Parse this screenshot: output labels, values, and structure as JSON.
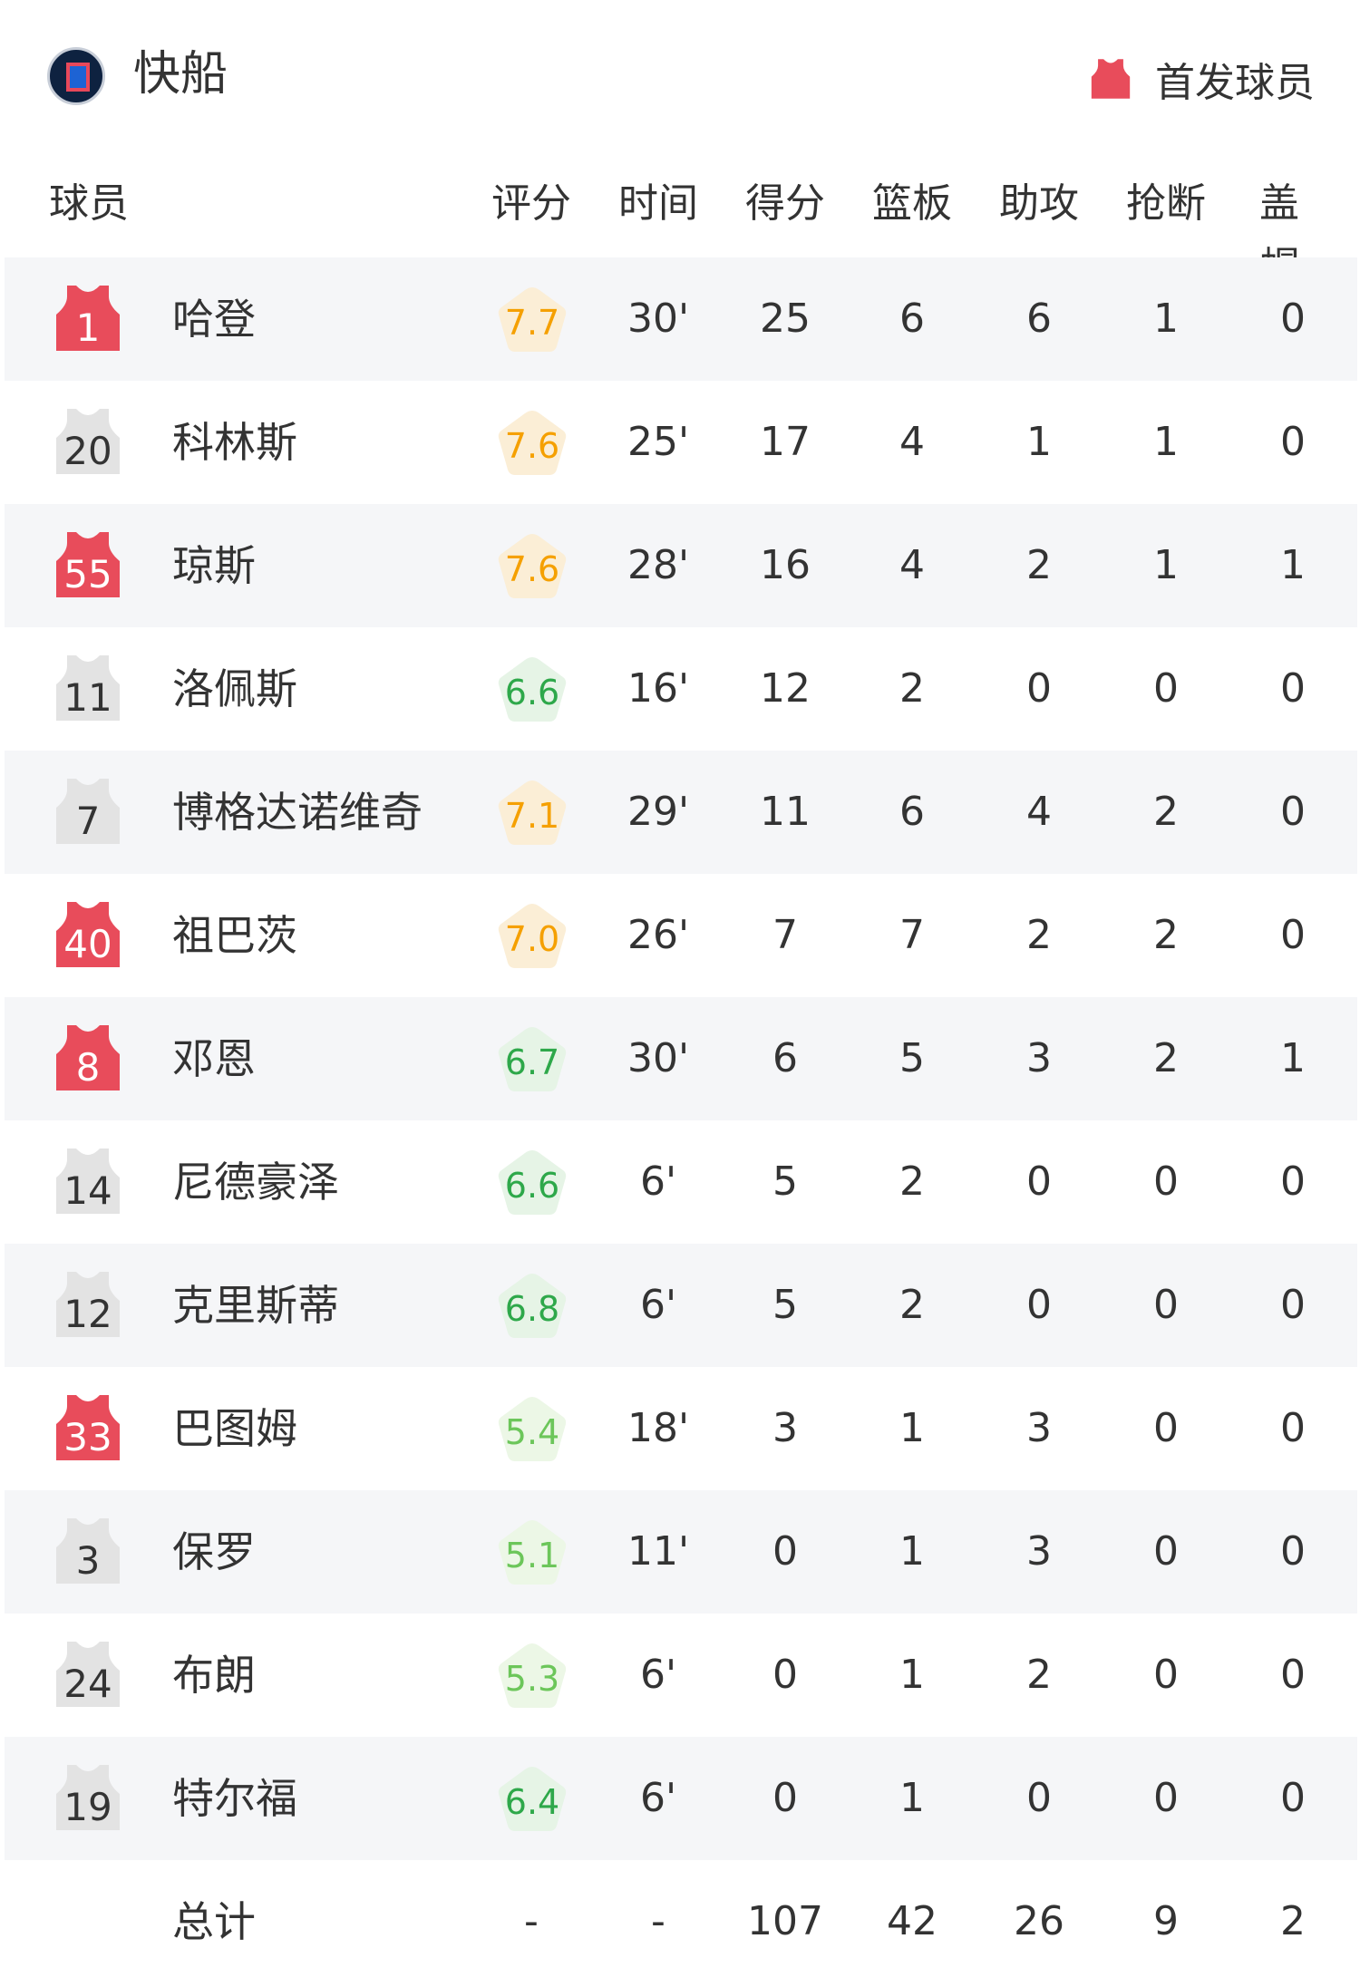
{
  "header": {
    "team": "快船",
    "team_logo": "clippers-logo",
    "starter_legend": "首发球员",
    "starter_color": "#e84c5b",
    "bench_color": "#e3e3e3"
  },
  "columns": [
    "球员",
    "评分",
    "时间",
    "得分",
    "篮板",
    "助攻",
    "抢断",
    "盖帽"
  ],
  "players": [
    {
      "number": "1",
      "name": "哈登",
      "starter": true,
      "rating": "7.7",
      "time": "30'",
      "pts": "25",
      "reb": "6",
      "ast": "6",
      "stl": "1",
      "blk": "0"
    },
    {
      "number": "20",
      "name": "科林斯",
      "starter": false,
      "rating": "7.6",
      "time": "25'",
      "pts": "17",
      "reb": "4",
      "ast": "1",
      "stl": "1",
      "blk": "0"
    },
    {
      "number": "55",
      "name": "琼斯",
      "starter": true,
      "rating": "7.6",
      "time": "28'",
      "pts": "16",
      "reb": "4",
      "ast": "2",
      "stl": "1",
      "blk": "1"
    },
    {
      "number": "11",
      "name": "洛佩斯",
      "starter": false,
      "rating": "6.6",
      "time": "16'",
      "pts": "12",
      "reb": "2",
      "ast": "0",
      "stl": "0",
      "blk": "0"
    },
    {
      "number": "7",
      "name": "博格达诺维奇",
      "starter": false,
      "rating": "7.1",
      "time": "29'",
      "pts": "11",
      "reb": "6",
      "ast": "4",
      "stl": "2",
      "blk": "0"
    },
    {
      "number": "40",
      "name": "祖巴茨",
      "starter": true,
      "rating": "7.0",
      "time": "26'",
      "pts": "7",
      "reb": "7",
      "ast": "2",
      "stl": "2",
      "blk": "0"
    },
    {
      "number": "8",
      "name": "邓恩",
      "starter": true,
      "rating": "6.7",
      "time": "30'",
      "pts": "6",
      "reb": "5",
      "ast": "3",
      "stl": "2",
      "blk": "1"
    },
    {
      "number": "14",
      "name": "尼德豪泽",
      "starter": false,
      "rating": "6.6",
      "time": "6'",
      "pts": "5",
      "reb": "2",
      "ast": "0",
      "stl": "0",
      "blk": "0"
    },
    {
      "number": "12",
      "name": "克里斯蒂",
      "starter": false,
      "rating": "6.8",
      "time": "6'",
      "pts": "5",
      "reb": "2",
      "ast": "0",
      "stl": "0",
      "blk": "0"
    },
    {
      "number": "33",
      "name": "巴图姆",
      "starter": true,
      "rating": "5.4",
      "time": "18'",
      "pts": "3",
      "reb": "1",
      "ast": "3",
      "stl": "0",
      "blk": "0"
    },
    {
      "number": "3",
      "name": "保罗",
      "starter": false,
      "rating": "5.1",
      "time": "11'",
      "pts": "0",
      "reb": "1",
      "ast": "3",
      "stl": "0",
      "blk": "0"
    },
    {
      "number": "24",
      "name": "布朗",
      "starter": false,
      "rating": "5.3",
      "time": "6'",
      "pts": "0",
      "reb": "1",
      "ast": "2",
      "stl": "0",
      "blk": "0"
    },
    {
      "number": "19",
      "name": "特尔福",
      "starter": false,
      "rating": "6.4",
      "time": "6'",
      "pts": "0",
      "reb": "1",
      "ast": "0",
      "stl": "0",
      "blk": "0"
    }
  ],
  "totals": {
    "label": "总计",
    "rating": "-",
    "time": "-",
    "pts": "107",
    "reb": "42",
    "ast": "26",
    "stl": "9",
    "blk": "2"
  },
  "rating_colors": {
    "high": {
      "text": "#f5a000",
      "bg": "#fbeed6"
    },
    "mid": {
      "text": "#2ea84a",
      "bg": "#e6f4e6"
    },
    "low": {
      "text": "#6cc65a",
      "bg": "#ecf7e6"
    }
  }
}
